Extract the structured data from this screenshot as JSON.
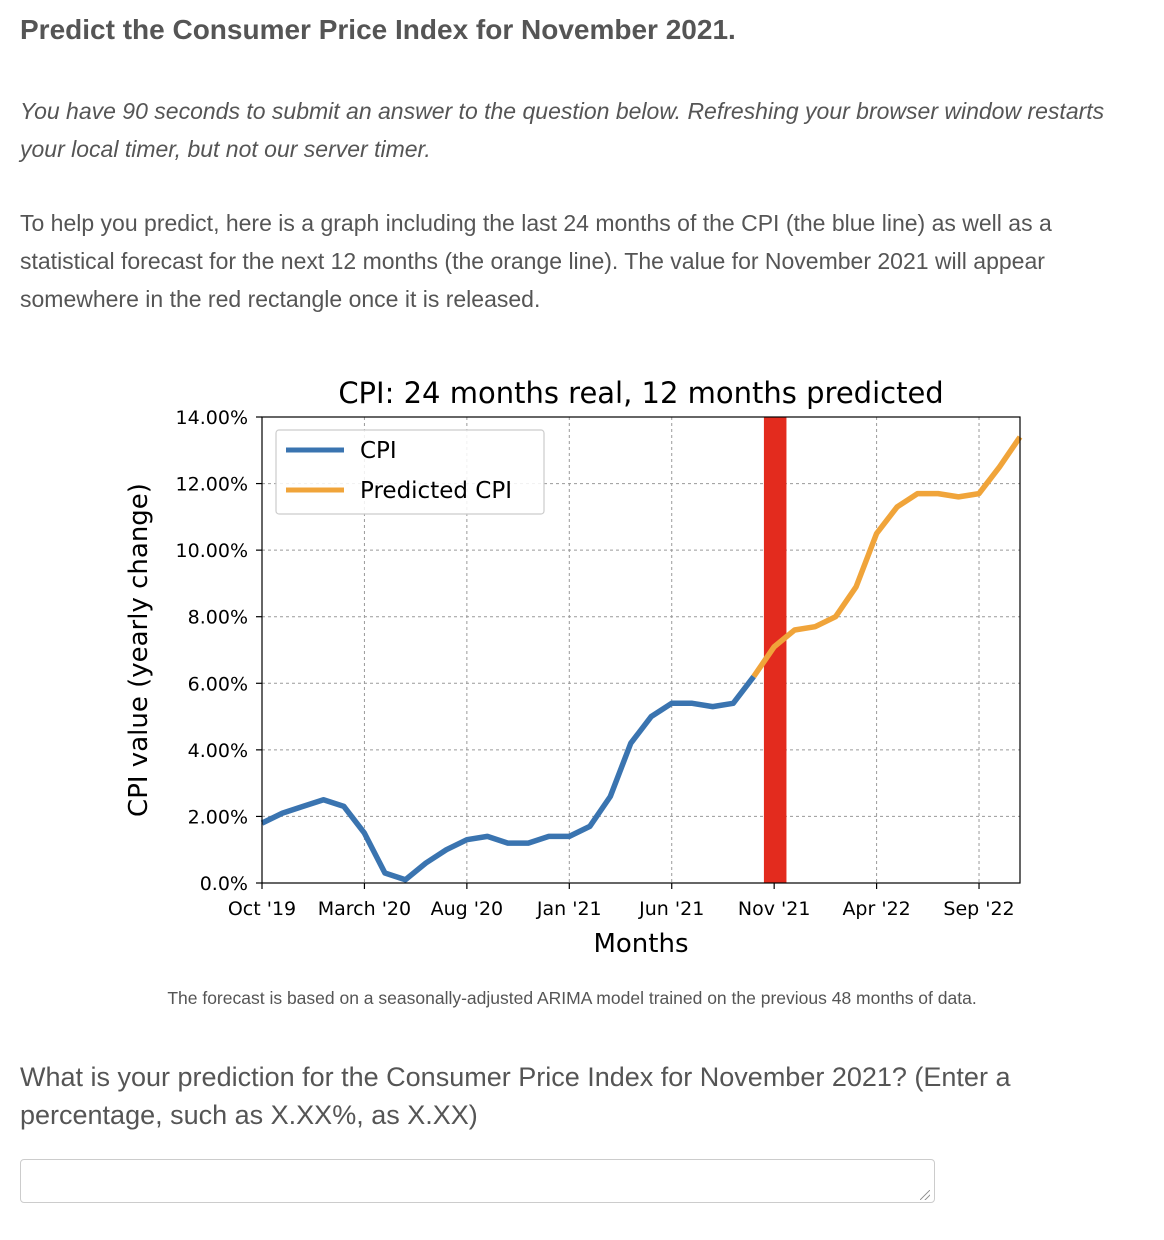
{
  "page": {
    "title": "Predict the Consumer Price Index for November 2021.",
    "timer_note": "You have 90 seconds to submit an answer to the question below. Refreshing your browser window restarts your local timer, but not our server timer.",
    "intro": "To help you predict, here is a graph including the last 24 months of the CPI (the blue line) as well as a statistical forecast for the next 12 months (the orange line). The value for November 2021 will appear somewhere in the red rectangle once it is released.",
    "caption": "The forecast is based on a seasonally-adjusted ARIMA model trained on the previous 48 months of data.",
    "question": "What is your prediction for the Consumer Price Index for November 2021? (Enter a percentage, such as X.XX%, as X.XX)",
    "answer": {
      "value": "",
      "placeholder": ""
    }
  },
  "colors": {
    "cpi": "#3a74b0",
    "predicted": "#f0a43a",
    "highlight": "#e32b1e"
  },
  "chart_data": {
    "type": "line",
    "title": "CPI: 24 months real, 12 months predicted",
    "xlabel": "Months",
    "ylabel": "CPI value (yearly change)",
    "xlim": [
      0,
      37
    ],
    "ylim": [
      0,
      14
    ],
    "grid": true,
    "legend_position": "top-left",
    "yticks": [
      {
        "value": 0,
        "label": "0.0%"
      },
      {
        "value": 2,
        "label": "2.00%"
      },
      {
        "value": 4,
        "label": "4.00%"
      },
      {
        "value": 6,
        "label": "6.00%"
      },
      {
        "value": 8,
        "label": "8.00%"
      },
      {
        "value": 10,
        "label": "10.00%"
      },
      {
        "value": 12,
        "label": "12.00%"
      },
      {
        "value": 14,
        "label": "14.00%"
      }
    ],
    "xticks": [
      {
        "value": 0,
        "label": "Oct '19"
      },
      {
        "value": 5,
        "label": "March '20"
      },
      {
        "value": 10,
        "label": "Aug '20"
      },
      {
        "value": 15,
        "label": "Jan '21"
      },
      {
        "value": 20,
        "label": "Jun '21"
      },
      {
        "value": 25,
        "label": "Nov '21"
      },
      {
        "value": 30,
        "label": "Apr '22"
      },
      {
        "value": 35,
        "label": "Sep '22"
      }
    ],
    "highlight": {
      "x_start": 24.5,
      "x_end": 25.6,
      "label": "Nov '21"
    },
    "series": [
      {
        "name": "CPI",
        "x": [
          0,
          1,
          2,
          3,
          4,
          5,
          6,
          7,
          8,
          9,
          10,
          11,
          12,
          13,
          14,
          15,
          16,
          17,
          18,
          19,
          20,
          21,
          22,
          23,
          24
        ],
        "values": [
          1.8,
          2.1,
          2.3,
          2.5,
          2.3,
          1.5,
          0.3,
          0.1,
          0.6,
          1.0,
          1.3,
          1.4,
          1.2,
          1.2,
          1.4,
          1.4,
          1.7,
          2.6,
          4.2,
          5.0,
          5.4,
          5.4,
          5.3,
          5.4,
          6.2
        ]
      },
      {
        "name": "Predicted CPI",
        "x": [
          24,
          25,
          26,
          27,
          28,
          29,
          30,
          31,
          32,
          33,
          34,
          35,
          36,
          37
        ],
        "values": [
          6.2,
          7.1,
          7.6,
          7.7,
          8.0,
          8.9,
          10.5,
          11.3,
          11.7,
          11.7,
          11.6,
          11.7,
          12.5,
          13.4
        ]
      }
    ]
  }
}
